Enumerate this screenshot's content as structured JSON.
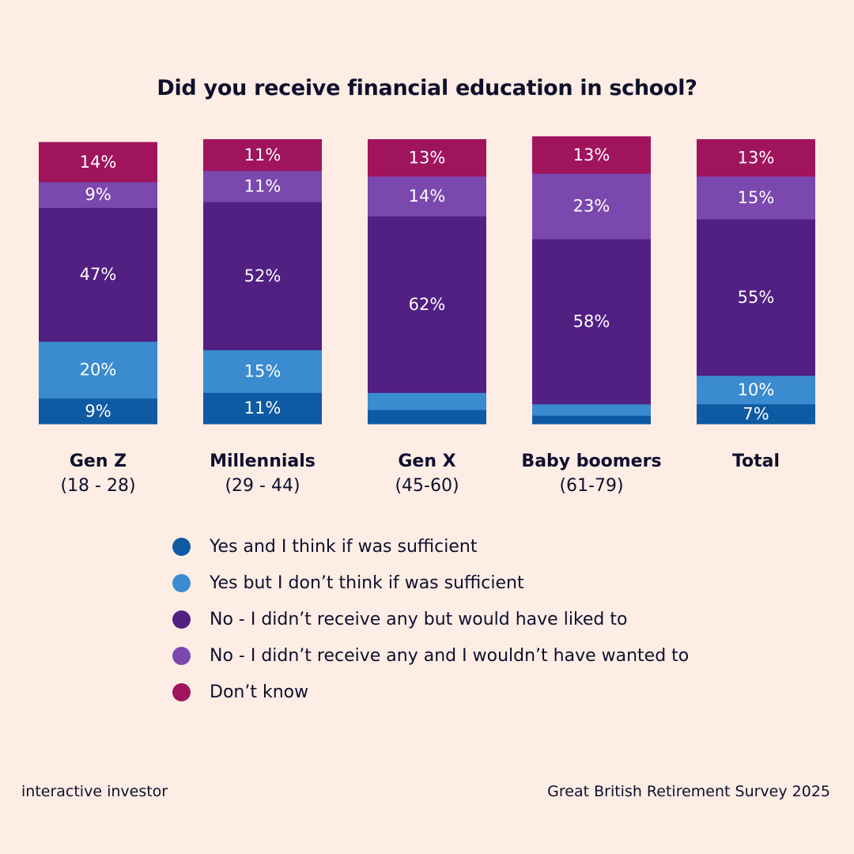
{
  "chart_data": {
    "type": "bar",
    "stacked": true,
    "title": "Did you receive financial education in school?",
    "categories": [
      "Gen Z",
      "Millennials",
      "Gen X",
      "Baby boomers",
      "Total"
    ],
    "category_ranges": [
      "(18 - 28)",
      "(29 - 44)",
      "(45-60)",
      "(61-79)",
      ""
    ],
    "series": [
      {
        "name": "Yes and I think if was sufficient",
        "color": "#0e5aa3",
        "values": [
          9,
          11,
          5,
          3,
          7
        ],
        "labels": [
          "9%",
          "11%",
          "",
          "",
          "7%"
        ]
      },
      {
        "name": "Yes but I don’t think if was sufficient",
        "color": "#3a8bd0",
        "values": [
          20,
          15,
          6,
          4,
          10
        ],
        "labels": [
          "20%",
          "15%",
          "",
          "",
          "10%"
        ]
      },
      {
        "name": "No - I didn’t receive any but would have liked to",
        "color": "#521f83",
        "values": [
          47,
          52,
          62,
          58,
          55
        ],
        "labels": [
          "47%",
          "52%",
          "62%",
          "58%",
          "55%"
        ]
      },
      {
        "name": "No - I didn’t receive any and I wouldn’t have wanted to",
        "color": "#7a48ae",
        "values": [
          9,
          11,
          14,
          23,
          15
        ],
        "labels": [
          "9%",
          "11%",
          "14%",
          "23%",
          "15%"
        ]
      },
      {
        "name": "Don’t know",
        "color": "#a0145e",
        "values": [
          14,
          11,
          13,
          13,
          13
        ],
        "labels": [
          "14%",
          "11%",
          "13%",
          "13%",
          "13%"
        ]
      }
    ],
    "ylim": [
      0,
      100
    ],
    "legend_position": "bottom"
  },
  "footer": {
    "brand": "interactive investor",
    "source": "Great British Retirement Survey 2025"
  }
}
